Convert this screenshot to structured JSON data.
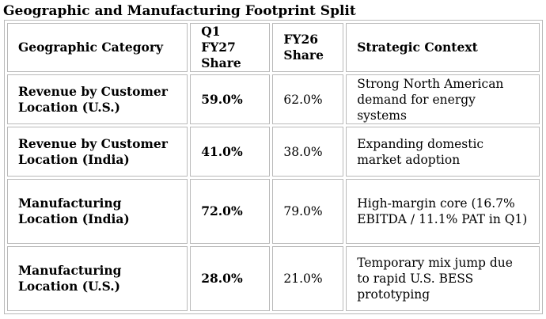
{
  "title": "Geographic and Manufacturing Footprint Split",
  "table": {
    "headers": [
      "Geographic Category",
      "Q1 FY27 Share",
      "FY26 Share",
      "Strategic Context"
    ],
    "rows": [
      {
        "category": "Revenue by Customer Location (U.S.)",
        "q1_fy27": "59.0%",
        "fy26": "62.0%",
        "context": "Strong North American demand for energy systems"
      },
      {
        "category": "Revenue by Customer Location (India)",
        "q1_fy27": "41.0%",
        "fy26": "38.0%",
        "context": "Expanding domestic market adoption"
      },
      {
        "category": "Manufacturing Location (India)",
        "q1_fy27": "72.0%",
        "fy26": "79.0%",
        "context": "High-margin core (16.7% EBITDA / 11.1% PAT in Q1)"
      },
      {
        "category": "Manufacturing Location (U.S.)",
        "q1_fy27": "28.0%",
        "fy26": "21.0%",
        "context": "Temporary mix jump due to rapid U.S. BESS prototyping"
      }
    ]
  }
}
